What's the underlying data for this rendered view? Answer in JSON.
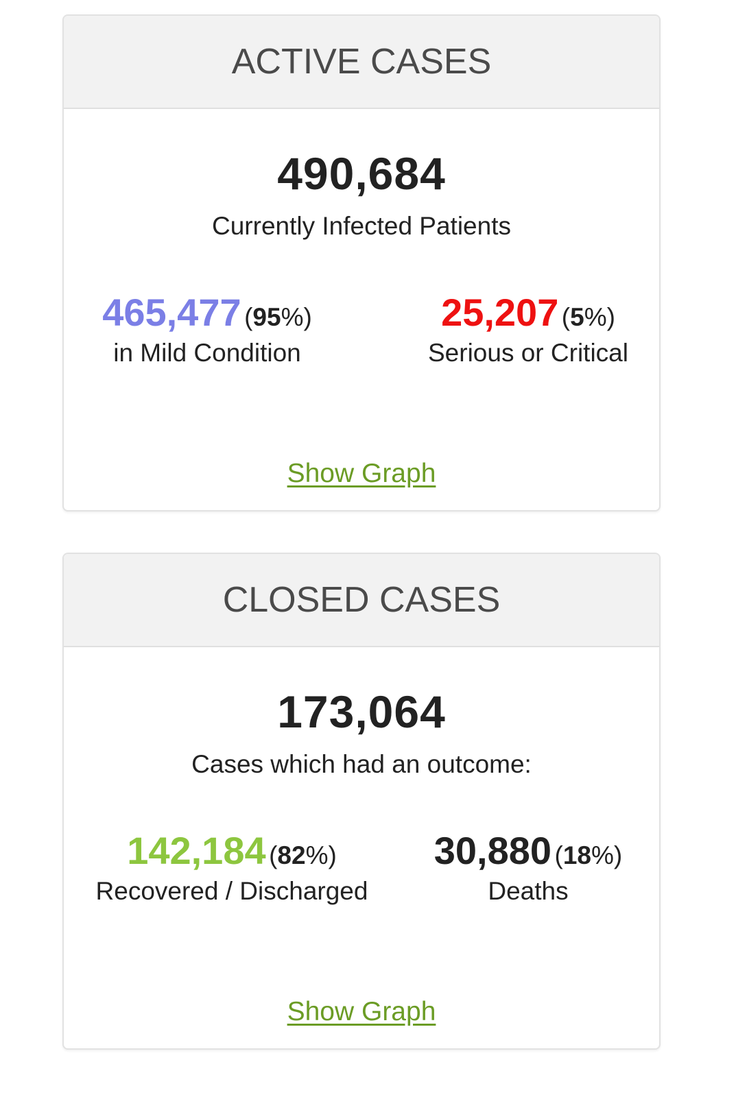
{
  "active": {
    "title": "ACTIVE CASES",
    "total": "490,684",
    "total_label": "Currently Infected Patients",
    "left": {
      "value": "465,477",
      "pct_open": "(",
      "pct": "95",
      "pct_close": "%)",
      "label": "in Mild Condition",
      "color": "#7b7fe6"
    },
    "right": {
      "value": "25,207",
      "pct_open": "(",
      "pct": "5",
      "pct_close": "%)",
      "label": "Serious or Critical",
      "color": "#ee1111"
    },
    "link": "Show Graph"
  },
  "closed": {
    "title": "CLOSED CASES",
    "total": "173,064",
    "total_label": "Cases which had an outcome:",
    "left": {
      "value": "142,184",
      "pct_open": "(",
      "pct": "82",
      "pct_close": "%)",
      "label": "Recovered / Discharged",
      "color": "#8dc63f"
    },
    "right": {
      "value": "30,880",
      "pct_open": "(",
      "pct": "18",
      "pct_close": "%)",
      "label": "Deaths",
      "color": "#222222"
    },
    "link": "Show Graph"
  },
  "link_color": "#6b9c25"
}
